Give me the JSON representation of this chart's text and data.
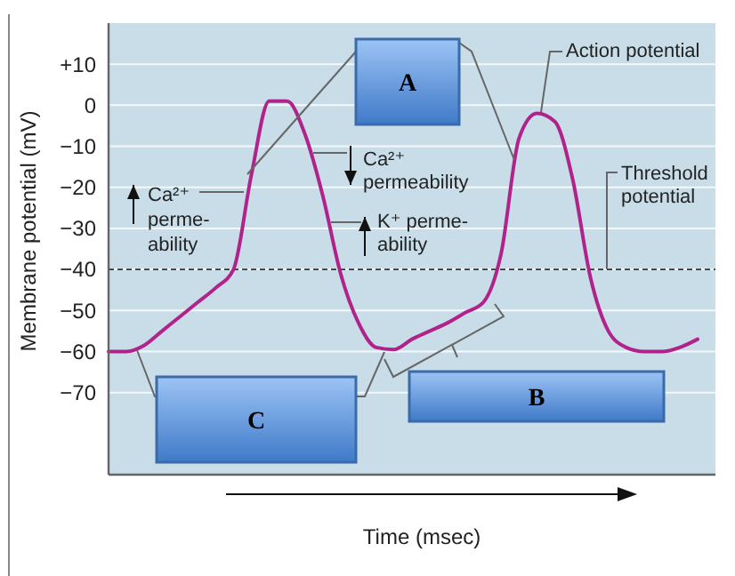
{
  "chart_data": {
    "type": "line",
    "ylabel": "Membrane potential (mV)",
    "xlabel": "Time (msec)",
    "categories": [
      null,
      null,
      null,
      null,
      null,
      null,
      null,
      null,
      null,
      null,
      null,
      null,
      null,
      null,
      null,
      null,
      null,
      null,
      null,
      null,
      null,
      null,
      null,
      null,
      null,
      null,
      null,
      null,
      null,
      null,
      null,
      null,
      null,
      null,
      null
    ],
    "series": [
      {
        "color": "#b0238a",
        "values": [
          -60,
          -60,
          -58.5,
          -55,
          -51.5,
          -48,
          -44.5,
          -40,
          -17,
          1,
          1,
          -7,
          -22,
          -41,
          -53,
          -59,
          -59.5,
          -57,
          -55,
          -53,
          -50.5,
          -48,
          -36,
          -8,
          -2,
          -4,
          -18,
          -42,
          -55,
          -59,
          -60,
          -60,
          -59,
          -57,
          null
        ]
      }
    ],
    "ylim": [
      -90,
      20
    ],
    "yticks": [
      {
        "value": 10,
        "label": "+10"
      },
      0,
      {
        "value": -10,
        "label": "−10"
      },
      {
        "value": -20,
        "label": "−20"
      },
      {
        "value": -30,
        "label": "−30"
      },
      {
        "value": -40,
        "label": "−40"
      },
      {
        "value": -50,
        "label": "−50"
      },
      {
        "value": -60,
        "label": "−60"
      },
      {
        "value": -70,
        "label": "−70"
      }
    ],
    "grid": "y",
    "line_style": "solid",
    "marker": "none",
    "ref_lines": [
      {
        "axis": "y",
        "value": -40,
        "label": "Threshold potential",
        "line_style": "dashed",
        "color": "#333333"
      }
    ],
    "annotations": [
      "Ca²⁺\nperme-\nability",
      "Ca²⁺\npermeability",
      "K⁺ perme-\nability",
      "Action potential",
      "A",
      "B",
      "C"
    ]
  }
}
